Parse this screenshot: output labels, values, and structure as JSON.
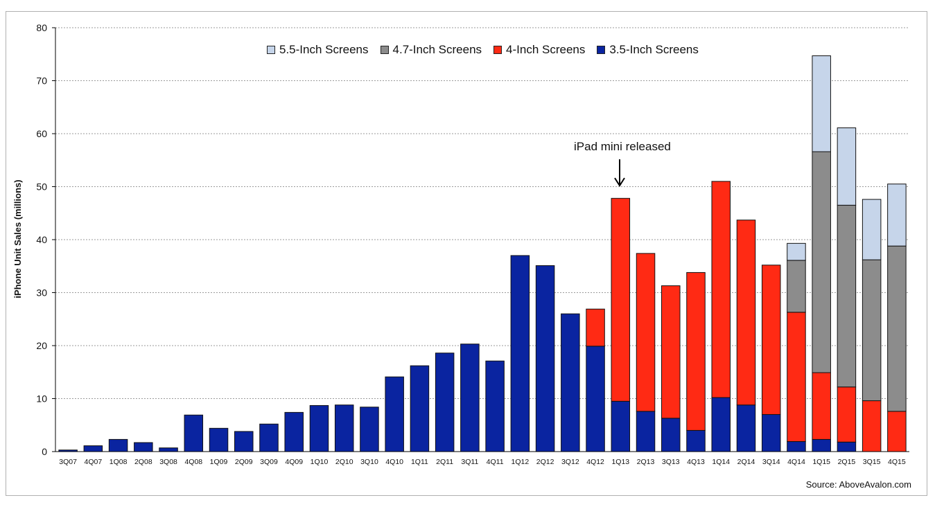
{
  "chart_data": {
    "type": "bar",
    "stacked": true,
    "title": "",
    "xlabel": "",
    "ylabel": "iPhone Unit Sales (millions)",
    "ylim": [
      0,
      80
    ],
    "yticks": [
      0,
      10,
      20,
      30,
      40,
      50,
      60,
      70,
      80
    ],
    "grid": "horizontal dotted",
    "legend_position": "top",
    "categories": [
      "3Q07",
      "4Q07",
      "1Q08",
      "2Q08",
      "3Q08",
      "4Q08",
      "1Q09",
      "2Q09",
      "3Q09",
      "4Q09",
      "1Q10",
      "2Q10",
      "3Q10",
      "4Q10",
      "1Q11",
      "2Q11",
      "3Q11",
      "4Q11",
      "1Q12",
      "2Q12",
      "3Q12",
      "4Q12",
      "1Q13",
      "2Q13",
      "3Q13",
      "4Q13",
      "1Q14",
      "2Q14",
      "3Q14",
      "4Q14",
      "1Q15",
      "2Q15",
      "3Q15",
      "4Q15"
    ],
    "series": [
      {
        "name": "3.5-Inch Screens",
        "color": "#0a24a0",
        "values": [
          0.3,
          1.1,
          2.3,
          1.7,
          0.7,
          6.9,
          4.4,
          3.8,
          5.2,
          7.4,
          8.7,
          8.8,
          8.4,
          14.1,
          16.2,
          18.6,
          20.3,
          17.1,
          37.0,
          35.1,
          26.0,
          19.9,
          9.5,
          7.6,
          6.3,
          4.0,
          10.2,
          8.8,
          7.0,
          1.9,
          2.3,
          1.8,
          0,
          0
        ]
      },
      {
        "name": "4-Inch Screens",
        "color": "#ff2a14",
        "values": [
          0,
          0,
          0,
          0,
          0,
          0,
          0,
          0,
          0,
          0,
          0,
          0,
          0,
          0,
          0,
          0,
          0,
          0,
          0,
          0,
          0,
          7.0,
          38.3,
          29.8,
          25.0,
          29.8,
          40.8,
          34.9,
          28.2,
          24.4,
          12.6,
          10.4,
          9.6,
          7.6
        ]
      },
      {
        "name": "4.7-Inch Screens",
        "color": "#8c8c8c",
        "values": [
          0,
          0,
          0,
          0,
          0,
          0,
          0,
          0,
          0,
          0,
          0,
          0,
          0,
          0,
          0,
          0,
          0,
          0,
          0,
          0,
          0,
          0,
          0,
          0,
          0,
          0,
          0,
          0,
          0,
          9.8,
          41.7,
          34.3,
          26.6,
          31.2
        ]
      },
      {
        "name": "5.5-Inch Screens",
        "color": "#c6d5ea",
        "values": [
          0,
          0,
          0,
          0,
          0,
          0,
          0,
          0,
          0,
          0,
          0,
          0,
          0,
          0,
          0,
          0,
          0,
          0,
          0,
          0,
          0,
          0,
          0,
          0,
          0,
          0,
          0,
          0,
          0,
          3.2,
          18.1,
          14.6,
          11.4,
          11.7
        ]
      }
    ],
    "annotations": [
      {
        "text": "iPad mini released",
        "category": "1Q13"
      }
    ],
    "source": "Source: AboveAvalon.com"
  }
}
